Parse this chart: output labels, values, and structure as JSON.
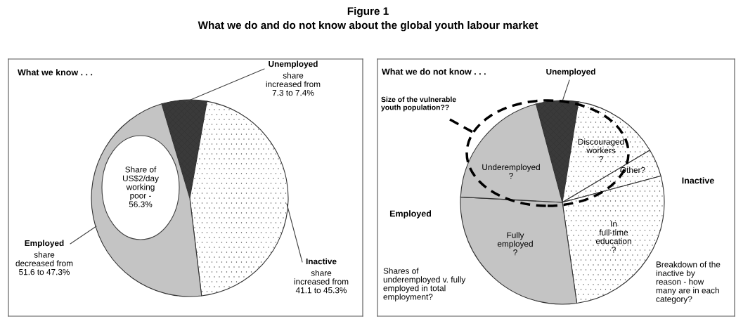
{
  "chart_data": [
    {
      "type": "pie",
      "title": "Figure 1",
      "subtitle": "What we do and do not know about the global youth labour market",
      "categories": [
        "Unemployed",
        "Inactive",
        "Employed"
      ],
      "values": [
        7.4,
        45.3,
        47.3
      ],
      "colors": [
        "#3a3a3a",
        "#ffffff",
        "#c4c4c4"
      ],
      "annotations": [
        "What we know . . .",
        "share\nincreased from\n7.3 to 7.4%",
        "share\nincreased from\n41.1 to 45.3%",
        "share\ndecreased from\n51.6 to 47.3%",
        "Share of\nUS$2/day\nworking\npoor -\n56.3%"
      ]
    },
    {
      "type": "pie",
      "categories": [
        "Unemployed",
        "Discouraged\nworkers\n?",
        "Other?",
        "In\nfull-time\neducation\n?",
        "Fully\nemployed\n?",
        "Underemployed\n?"
      ],
      "values": [
        6.7,
        13.9,
        4.4,
        26.9,
        28.1,
        20.0
      ],
      "colors": [
        "#3a3a3a",
        "#ffffff",
        "#ffffff",
        "#ffffff",
        "#c4c4c4",
        "#c4c4c4"
      ],
      "annotations": [
        "What we do not know . . .",
        "Inactive",
        "Employed",
        "Size of the vulnerable\nyouth population??",
        "Shares of\nunderemployed v. fully\nemployed in total\nemployment?",
        "Breakdown of the\ninactive by\nreason - how\nmany are in each\ncategory?"
      ]
    }
  ]
}
